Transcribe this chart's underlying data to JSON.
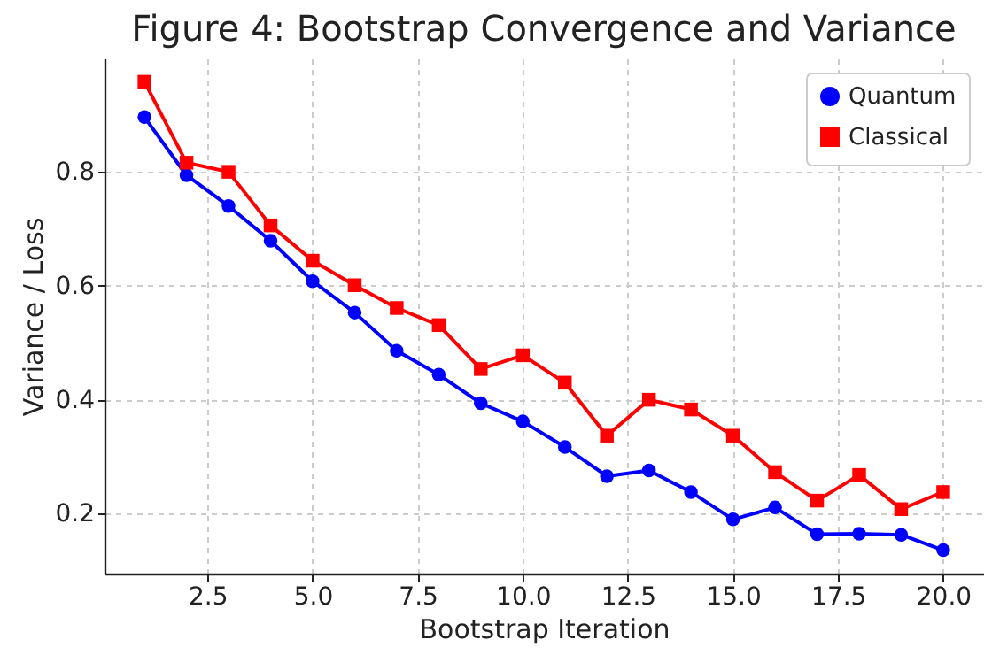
{
  "chart_data": {
    "type": "line",
    "title": "Figure 4: Bootstrap Convergence and Variance",
    "xlabel": "Bootstrap Iteration",
    "ylabel": "Variance / Loss",
    "x": [
      1,
      2,
      3,
      4,
      5,
      6,
      7,
      8,
      9,
      10,
      11,
      12,
      13,
      14,
      15,
      16,
      17,
      18,
      19,
      20
    ],
    "series": [
      {
        "name": "Quantum",
        "color": "#0000ff",
        "marker": "circle",
        "values": [
          0.896,
          0.794,
          0.74,
          0.679,
          0.608,
          0.553,
          0.486,
          0.444,
          0.394,
          0.362,
          0.317,
          0.266,
          0.276,
          0.238,
          0.19,
          0.211,
          0.164,
          0.165,
          0.163,
          0.136
        ]
      },
      {
        "name": "Classical",
        "color": "#ff0000",
        "marker": "square",
        "values": [
          0.958,
          0.816,
          0.8,
          0.706,
          0.644,
          0.601,
          0.561,
          0.531,
          0.454,
          0.478,
          0.43,
          0.337,
          0.4,
          0.383,
          0.337,
          0.273,
          0.223,
          0.268,
          0.208,
          0.238
        ]
      }
    ],
    "xlim": [
      0.05,
      20.95
    ],
    "ylim": [
      0.095,
      0.999
    ],
    "xticks": [
      2.5,
      {
        "value": 5,
        "label": "5.0"
      },
      7.5,
      {
        "value": 10,
        "label": "10.0"
      },
      12.5,
      {
        "value": 15,
        "label": "15.0"
      },
      17.5,
      {
        "value": 20,
        "label": "20.0"
      }
    ],
    "yticks": [
      0.2,
      0.4,
      0.6,
      0.8
    ],
    "grid": true,
    "legend": "top right",
    "line_style": "solid"
  }
}
